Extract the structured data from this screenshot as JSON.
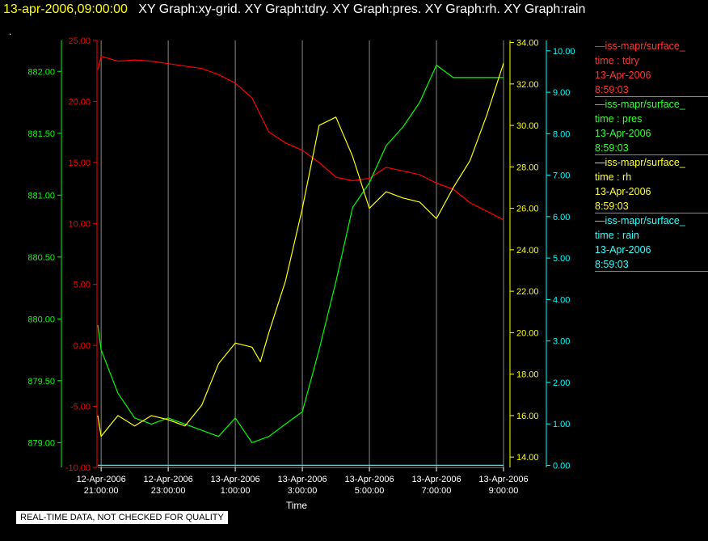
{
  "title": {
    "time": "13-apr-2006,09:00:00",
    "graphs": "XY Graph:xy-grid.  XY Graph:tdry.  XY Graph:pres.  XY Graph:rh.  XY Graph:rain"
  },
  "dot": ".",
  "quality_note": "REAL-TIME DATA, NOT CHECKED FOR QUALITY",
  "colors": {
    "tdry": "#ff0000",
    "pres": "#00ff00",
    "rh": "#ffff00",
    "rain": "#00ffff",
    "grid": "#888888"
  },
  "legend": [
    {
      "name": "—iss-mapr/surface_",
      "line2": "time : tdry",
      "date": "13-Apr-2006",
      "time": "8:59:03",
      "color": "#ff3333"
    },
    {
      "name": "—iss-mapr/surface_",
      "line2": "time : pres",
      "date": "13-Apr-2006",
      "time": "8:59:03",
      "color": "#33ff33"
    },
    {
      "name": "—iss-mapr/surface_",
      "line2": "time : rh",
      "date": "13-Apr-2006",
      "time": "8:59:03",
      "color": "#ffff33"
    },
    {
      "name": "—iss-mapr/surface_",
      "line2": "time : rain",
      "date": "13-Apr-2006",
      "time": "8:59:03",
      "color": "#33ffff"
    }
  ],
  "chart_data": {
    "type": "line",
    "xlabel": "Time",
    "x_range": [
      "2006-04-12 20:54",
      "2006-04-13 09:00"
    ],
    "x_ticks": [
      {
        "date": "12-Apr-2006",
        "time": "21:00:00",
        "value": "2006-04-12 21:00"
      },
      {
        "date": "12-Apr-2006",
        "time": "23:00:00",
        "value": "2006-04-12 23:00"
      },
      {
        "date": "13-Apr-2006",
        "time": "1:00:00",
        "value": "2006-04-13 01:00"
      },
      {
        "date": "13-Apr-2006",
        "time": "3:00:00",
        "value": "2006-04-13 03:00"
      },
      {
        "date": "13-Apr-2006",
        "time": "5:00:00",
        "value": "2006-04-13 05:00"
      },
      {
        "date": "13-Apr-2006",
        "time": "7:00:00",
        "value": "2006-04-13 07:00"
      },
      {
        "date": "13-Apr-2006",
        "time": "9:00:00",
        "value": "2006-04-13 09:00"
      }
    ],
    "grid": "vertical lines at x ticks",
    "axes": [
      {
        "id": "tdry",
        "side": "left-inner",
        "color": "#ff0000",
        "range": [
          -10,
          25
        ],
        "ticks": [
          "25.00",
          "20.00",
          "15.00",
          "10.00",
          "5.00",
          "0.00",
          "-5.00",
          "-10.00"
        ]
      },
      {
        "id": "pres",
        "side": "left-outer",
        "color": "#00ff00",
        "range": [
          878.8,
          882.25
        ],
        "ticks": [
          "882.00",
          "881.50",
          "881.00",
          "880.50",
          "880.00",
          "879.50",
          "879.00"
        ]
      },
      {
        "id": "rh",
        "side": "right-inner",
        "color": "#ffff00",
        "range": [
          13.5,
          34.1
        ],
        "ticks": [
          "34.00",
          "32.00",
          "30.00",
          "28.00",
          "26.00",
          "24.00",
          "22.00",
          "20.00",
          "18.00",
          "16.00",
          "14.00"
        ]
      },
      {
        "id": "rain",
        "side": "right-outer",
        "color": "#00ffff",
        "range": [
          -0.05,
          10.25
        ],
        "ticks": [
          "10.00",
          "9.00",
          "8.00",
          "7.00",
          "6.00",
          "5.00",
          "4.00",
          "3.00",
          "2.00",
          "1.00",
          "0.00"
        ]
      }
    ],
    "series": [
      {
        "axis": "tdry",
        "x": [
          "2006-04-12 20:54",
          "2006-04-12 21:00",
          "2006-04-12 21:30",
          "2006-04-12 22:00",
          "2006-04-12 22:30",
          "2006-04-12 23:00",
          "2006-04-12 23:30",
          "2006-04-13 00:00",
          "2006-04-13 00:30",
          "2006-04-13 01:00",
          "2006-04-13 01:30",
          "2006-04-13 02:00",
          "2006-04-13 02:30",
          "2006-04-13 03:00",
          "2006-04-13 03:30",
          "2006-04-13 04:00",
          "2006-04-13 04:30",
          "2006-04-13 05:00",
          "2006-04-13 05:30",
          "2006-04-13 06:00",
          "2006-04-13 06:30",
          "2006-04-13 07:00",
          "2006-04-13 07:30",
          "2006-04-13 08:00",
          "2006-04-13 08:30",
          "2006-04-13 09:00"
        ],
        "y": [
          22.6,
          23.7,
          23.3,
          23.4,
          23.3,
          23.1,
          22.9,
          22.7,
          22.2,
          21.5,
          20.3,
          17.5,
          16.6,
          16.0,
          15.0,
          13.8,
          13.5,
          13.7,
          14.6,
          14.3,
          14.0,
          13.3,
          12.8,
          11.7,
          11.0,
          10.3
        ]
      },
      {
        "axis": "pres",
        "x": [
          "2006-04-12 20:54",
          "2006-04-12 21:00",
          "2006-04-12 21:30",
          "2006-04-12 22:00",
          "2006-04-12 22:30",
          "2006-04-12 23:00",
          "2006-04-12 23:30",
          "2006-04-13 00:00",
          "2006-04-13 00:30",
          "2006-04-13 01:00",
          "2006-04-13 01:30",
          "2006-04-13 02:00",
          "2006-04-13 02:30",
          "2006-04-13 03:00",
          "2006-04-13 03:30",
          "2006-04-13 04:00",
          "2006-04-13 04:30",
          "2006-04-13 05:00",
          "2006-04-13 05:30",
          "2006-04-13 06:00",
          "2006-04-13 06:30",
          "2006-04-13 07:00",
          "2006-04-13 07:30",
          "2006-04-13 08:00",
          "2006-04-13 08:30",
          "2006-04-13 09:00"
        ],
        "y": [
          879.95,
          879.75,
          879.4,
          879.2,
          879.15,
          879.2,
          879.15,
          879.1,
          879.05,
          879.2,
          879.0,
          879.05,
          879.15,
          879.25,
          879.75,
          880.3,
          880.9,
          881.1,
          881.4,
          881.55,
          881.75,
          882.05,
          881.95,
          881.95,
          881.95,
          881.95
        ]
      },
      {
        "axis": "rh",
        "x": [
          "2006-04-12 20:54",
          "2006-04-12 21:00",
          "2006-04-12 21:30",
          "2006-04-12 22:00",
          "2006-04-12 22:30",
          "2006-04-12 23:00",
          "2006-04-12 23:30",
          "2006-04-13 00:00",
          "2006-04-13 00:30",
          "2006-04-13 01:00",
          "2006-04-13 01:30",
          "2006-04-13 01:45",
          "2006-04-13 02:00",
          "2006-04-13 02:30",
          "2006-04-13 03:00",
          "2006-04-13 03:30",
          "2006-04-13 04:00",
          "2006-04-13 04:30",
          "2006-04-13 05:00",
          "2006-04-13 05:30",
          "2006-04-13 06:00",
          "2006-04-13 06:30",
          "2006-04-13 07:00",
          "2006-04-13 07:30",
          "2006-04-13 08:00",
          "2006-04-13 08:30",
          "2006-04-13 09:00"
        ],
        "y": [
          16.0,
          15.0,
          16.0,
          15.5,
          16.0,
          15.8,
          15.5,
          16.5,
          18.5,
          19.5,
          19.3,
          18.6,
          20.0,
          22.5,
          26.0,
          30.0,
          30.4,
          28.5,
          26.0,
          26.8,
          26.5,
          26.3,
          25.5,
          27.0,
          28.3,
          30.5,
          33.0
        ]
      },
      {
        "axis": "rain",
        "x": [
          "2006-04-12 20:54",
          "2006-04-13 09:00"
        ],
        "y": [
          0.0,
          0.0
        ]
      }
    ]
  }
}
